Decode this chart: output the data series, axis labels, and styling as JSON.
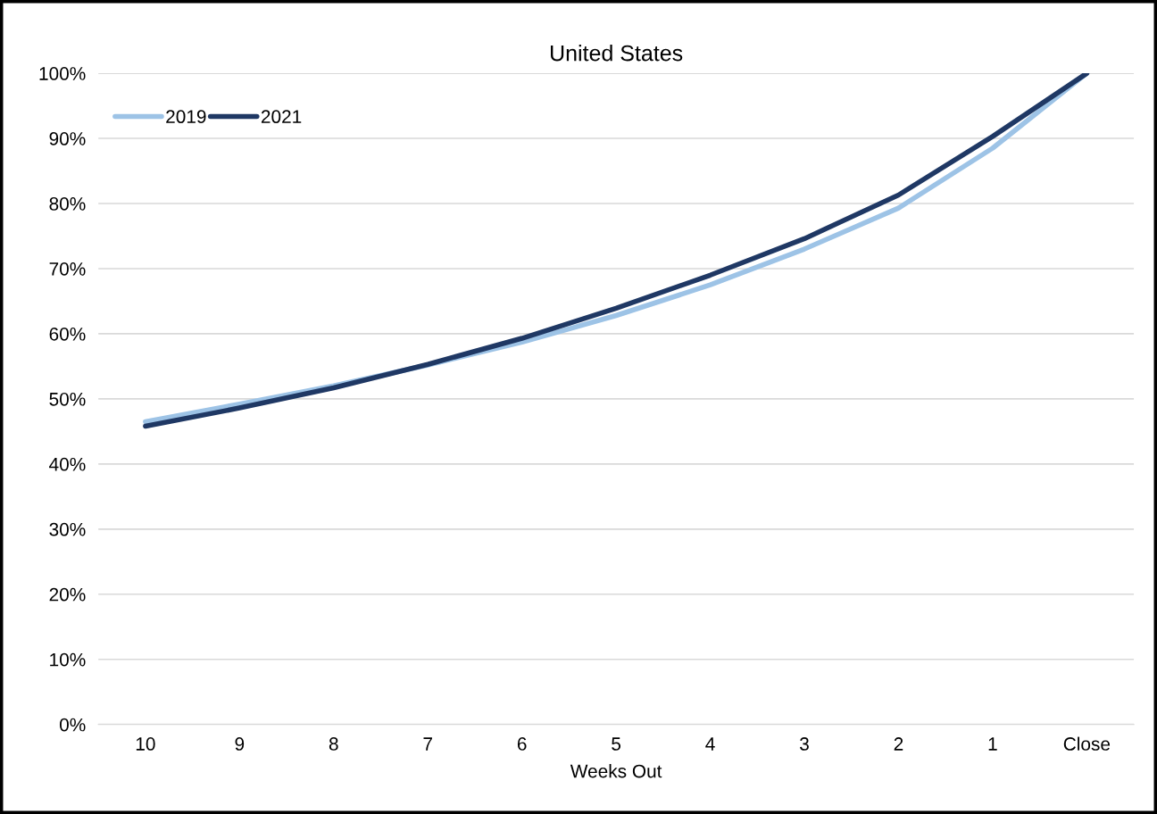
{
  "chart_data": {
    "type": "line",
    "title": "United States",
    "xlabel": "Weeks Out",
    "categories": [
      "10",
      "9",
      "8",
      "7",
      "6",
      "5",
      "4",
      "3",
      "2",
      "1",
      "Close"
    ],
    "series": [
      {
        "name": "2019",
        "color": "#9dc3e6",
        "values": [
          46.5,
          49.2,
          52.0,
          55.2,
          58.7,
          62.8,
          67.5,
          73.0,
          79.3,
          88.5,
          100
        ]
      },
      {
        "name": "2021",
        "color": "#1f3864",
        "values": [
          45.8,
          48.6,
          51.7,
          55.3,
          59.3,
          63.9,
          69.0,
          74.6,
          81.3,
          90.3,
          100
        ]
      }
    ],
    "ylim": [
      0,
      100
    ],
    "yticks": [
      {
        "value": 0,
        "label": "0%"
      },
      {
        "value": 10,
        "label": "10%"
      },
      {
        "value": 20,
        "label": "20%"
      },
      {
        "value": 30,
        "label": "30%"
      },
      {
        "value": 40,
        "label": "40%"
      },
      {
        "value": 50,
        "label": "50%"
      },
      {
        "value": 60,
        "label": "60%"
      },
      {
        "value": 70,
        "label": "70%"
      },
      {
        "value": 80,
        "label": "80%"
      },
      {
        "value": 90,
        "label": "90%"
      },
      {
        "value": 100,
        "label": "100%"
      }
    ],
    "grid": "y",
    "legend": "top left",
    "marker": "none",
    "line_style": "solid"
  }
}
